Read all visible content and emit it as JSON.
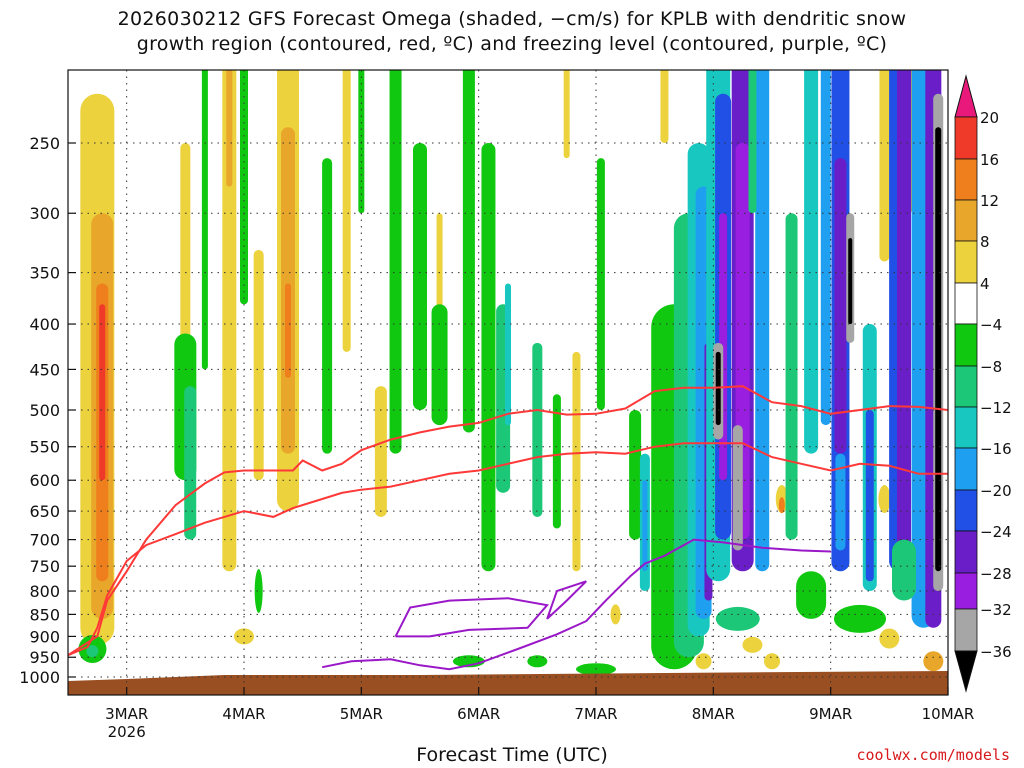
{
  "title_line1": "2026030212 GFS Forecast Omega (shaded, −cm/s) for KPLB with dendritic snow",
  "title_line2": "growth region (contoured, red, ºC) and freezing level (contoured, purple, ºC)",
  "xlabel": "Forecast Time (UTC)",
  "credit": "coolwx.com/models",
  "chart_data": {
    "type": "heatmap",
    "title": "2026030212 GFS Forecast Omega (shaded, −cm/s) for KPLB with dendritic snow growth region (contoured, red, ºC) and freezing level (contoured, purple, ºC)",
    "xlabel": "Forecast Time (UTC)",
    "ylabel": "",
    "x_ticks": [
      "3MAR",
      "4MAR",
      "5MAR",
      "6MAR",
      "7MAR",
      "8MAR",
      "9MAR",
      "10MAR"
    ],
    "x_tick_sub": "2026",
    "x_hours": [
      0,
      24,
      48,
      72,
      96,
      120,
      144,
      168
    ],
    "x_range_hours": [
      -12,
      168
    ],
    "y_ticks": [
      250,
      300,
      350,
      400,
      450,
      500,
      550,
      600,
      650,
      700,
      750,
      800,
      850,
      900,
      950,
      1000
    ],
    "y_range": [
      1000,
      200
    ],
    "y_scale": "log-pressure",
    "colorbar": {
      "ticks": [
        20,
        16,
        12,
        8,
        4,
        -4,
        -8,
        -12,
        -16,
        -20,
        -24,
        -28,
        -32,
        -36
      ],
      "colors": {
        "above_20": "#e8197b",
        "16_20": "#ef3a2a",
        "12_16": "#ef7f1c",
        "8_12": "#e8a62a",
        "4_8": "#ecd23c",
        "m4_4": "#ffffff",
        "m8_m4": "#10c810",
        "m12_m8": "#1cc878",
        "m16_m12": "#18c8c0",
        "m20_m16": "#1e9ff0",
        "m24_m20": "#2050e6",
        "m28_m24": "#6a1ec8",
        "m32_m28": "#9a1ee0",
        "m36_m32": "#a6a6a6",
        "below_m36": "#000000"
      }
    },
    "contours": {
      "dgz_upper_m18": [
        {
          "h": -12,
          "p": 945
        },
        {
          "h": -6,
          "p": 900
        },
        {
          "h": -4,
          "p": 820
        },
        {
          "h": 0,
          "p": 760
        },
        {
          "h": 4,
          "p": 700
        },
        {
          "h": 10,
          "p": 640
        },
        {
          "h": 16,
          "p": 605
        },
        {
          "h": 20,
          "p": 588
        },
        {
          "h": 24,
          "p": 585
        },
        {
          "h": 30,
          "p": 585
        },
        {
          "h": 34,
          "p": 585
        },
        {
          "h": 36,
          "p": 570
        },
        {
          "h": 40,
          "p": 585
        },
        {
          "h": 44,
          "p": 575
        },
        {
          "h": 48,
          "p": 555
        },
        {
          "h": 54,
          "p": 540
        },
        {
          "h": 60,
          "p": 530
        },
        {
          "h": 66,
          "p": 522
        },
        {
          "h": 72,
          "p": 517
        },
        {
          "h": 78,
          "p": 505
        },
        {
          "h": 84,
          "p": 500
        },
        {
          "h": 90,
          "p": 506
        },
        {
          "h": 96,
          "p": 505
        },
        {
          "h": 102,
          "p": 498
        },
        {
          "h": 108,
          "p": 476
        },
        {
          "h": 114,
          "p": 472
        },
        {
          "h": 120,
          "p": 472
        },
        {
          "h": 126,
          "p": 470
        },
        {
          "h": 132,
          "p": 490
        },
        {
          "h": 138,
          "p": 495
        },
        {
          "h": 144,
          "p": 505
        },
        {
          "h": 150,
          "p": 500
        },
        {
          "h": 156,
          "p": 495
        },
        {
          "h": 162,
          "p": 496
        },
        {
          "h": 168,
          "p": 500
        }
      ],
      "dgz_lower_m12": [
        {
          "h": -12,
          "p": 945
        },
        {
          "h": -8,
          "p": 925
        },
        {
          "h": -6,
          "p": 880
        },
        {
          "h": -4,
          "p": 810
        },
        {
          "h": 0,
          "p": 740
        },
        {
          "h": 4,
          "p": 710
        },
        {
          "h": 10,
          "p": 690
        },
        {
          "h": 16,
          "p": 670
        },
        {
          "h": 20,
          "p": 660
        },
        {
          "h": 24,
          "p": 650
        },
        {
          "h": 30,
          "p": 660
        },
        {
          "h": 34,
          "p": 645
        },
        {
          "h": 40,
          "p": 630
        },
        {
          "h": 44,
          "p": 620
        },
        {
          "h": 48,
          "p": 615
        },
        {
          "h": 54,
          "p": 610
        },
        {
          "h": 60,
          "p": 600
        },
        {
          "h": 66,
          "p": 590
        },
        {
          "h": 72,
          "p": 585
        },
        {
          "h": 78,
          "p": 575
        },
        {
          "h": 84,
          "p": 565
        },
        {
          "h": 90,
          "p": 560
        },
        {
          "h": 96,
          "p": 558
        },
        {
          "h": 102,
          "p": 560
        },
        {
          "h": 108,
          "p": 550
        },
        {
          "h": 114,
          "p": 545
        },
        {
          "h": 120,
          "p": 545
        },
        {
          "h": 126,
          "p": 545
        },
        {
          "h": 132,
          "p": 565
        },
        {
          "h": 138,
          "p": 575
        },
        {
          "h": 144,
          "p": 585
        },
        {
          "h": 150,
          "p": 575
        },
        {
          "h": 156,
          "p": 578
        },
        {
          "h": 162,
          "p": 590
        },
        {
          "h": 168,
          "p": 590
        }
      ],
      "freezing_level_0": [
        {
          "h": 40,
          "p": 975
        },
        {
          "h": 46,
          "p": 960
        },
        {
          "h": 54,
          "p": 955
        },
        {
          "h": 60,
          "p": 970
        },
        {
          "h": 66,
          "p": 980
        },
        {
          "h": 72,
          "p": 965
        },
        {
          "h": 80,
          "p": 930
        },
        {
          "h": 88,
          "p": 895
        },
        {
          "h": 94,
          "p": 865
        },
        {
          "h": 98,
          "p": 820
        },
        {
          "h": 103,
          "p": 770
        },
        {
          "h": 106,
          "p": 745
        },
        {
          "h": 110,
          "p": 730
        },
        {
          "h": 116,
          "p": 700
        },
        {
          "h": 122,
          "p": 705
        },
        {
          "h": 130,
          "p": 715
        },
        {
          "h": 138,
          "p": 720
        },
        {
          "h": 144,
          "p": 722
        }
      ]
    }
  }
}
